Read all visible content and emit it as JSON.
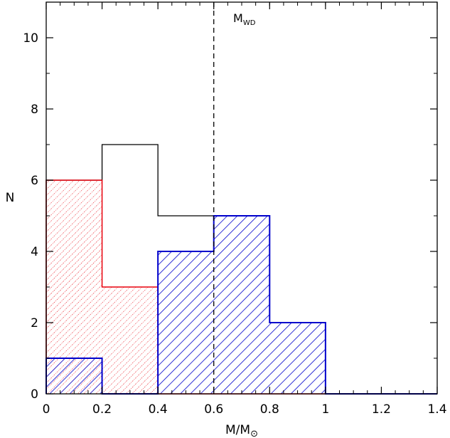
{
  "chart_data": {
    "type": "histogram",
    "xlabel_main": "M/M",
    "xlabel_symbol": "⊙",
    "ylabel": "N",
    "xlim": [
      0,
      1.4
    ],
    "ylim": [
      0,
      11
    ],
    "xticks": [
      "0",
      "0.2",
      "0.4",
      "0.6",
      "0.8",
      "1",
      "1.2",
      "1.4"
    ],
    "yticks": [
      "0",
      "2",
      "4",
      "6",
      "8",
      "10"
    ],
    "xtick_values": [
      0,
      0.2,
      0.4,
      0.6,
      0.8,
      1.0,
      1.2,
      1.4
    ],
    "ytick_values": [
      0,
      2,
      4,
      6,
      8,
      10
    ],
    "bin_edges": [
      0,
      0.2,
      0.4,
      0.6,
      0.8,
      1.0,
      1.2,
      1.4
    ],
    "series": [
      {
        "key": "total",
        "values": [
          6,
          7,
          5,
          5,
          2,
          0,
          0
        ],
        "color": "#000000",
        "fill": "none"
      },
      {
        "key": "red",
        "values": [
          6,
          3,
          0,
          0,
          0,
          0,
          0
        ],
        "color": "#e8000b",
        "fill": "dotted-hatch"
      },
      {
        "key": "blue",
        "values": [
          1,
          0,
          4,
          5,
          2,
          0,
          0
        ],
        "color": "#0000cc",
        "fill": "diagonal-hatch"
      }
    ],
    "vline": {
      "x": 0.6,
      "style": "dashed",
      "color": "#000000"
    },
    "annotation": {
      "text": "M",
      "subscript": "WD",
      "x": 0.6
    }
  }
}
